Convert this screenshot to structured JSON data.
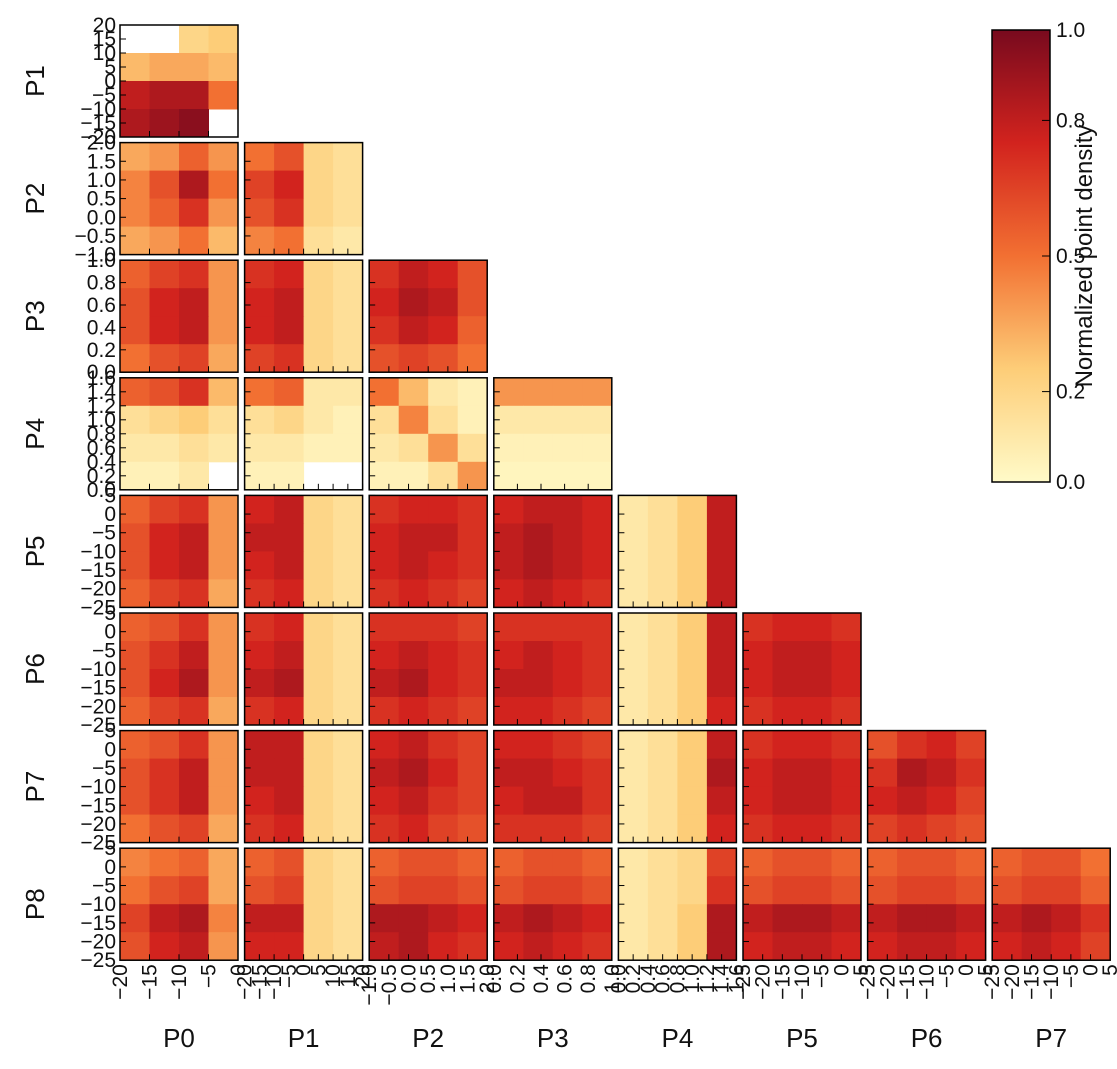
{
  "chart_data": {
    "type": "corner-heatmap",
    "colorbar": {
      "label": "Normalized point density",
      "lim": [
        0,
        1
      ],
      "ticks": [
        {
          "value": 0,
          "label": "0.0"
        },
        {
          "value": 0.2,
          "label": "0.2"
        },
        {
          "value": 0.5,
          "label": "0.5"
        },
        {
          "value": 0.8,
          "label": "0.8"
        },
        {
          "value": 1,
          "label": "1.0"
        }
      ]
    },
    "params": [
      {
        "name": "P0",
        "lim": [
          -20,
          0
        ],
        "ticks": [
          {
            "value": -20,
            "label": "−20"
          },
          {
            "value": -15,
            "label": "−15"
          },
          {
            "value": -10,
            "label": "−10"
          },
          {
            "value": -5,
            "label": "−5"
          },
          0
        ]
      },
      {
        "name": "P1",
        "lim": [
          -20,
          20
        ],
        "ticks": [
          {
            "value": -20,
            "label": "−20"
          },
          {
            "value": -15,
            "label": "−15"
          },
          {
            "value": -10,
            "label": "−10"
          },
          {
            "value": -5,
            "label": "−5"
          },
          0,
          5,
          10,
          15,
          20
        ]
      },
      {
        "name": "P2",
        "lim": [
          -1,
          2
        ],
        "ticks": [
          {
            "value": -1,
            "label": "−1.0"
          },
          {
            "value": -0.5,
            "label": "−0.5"
          },
          {
            "value": 0,
            "label": "0.0"
          },
          0.5,
          {
            "value": 1,
            "label": "1.0"
          },
          1.5,
          {
            "value": 2,
            "label": "2.0"
          }
        ]
      },
      {
        "name": "P3",
        "lim": [
          0,
          1
        ],
        "ticks": [
          {
            "value": 0,
            "label": "0.0"
          },
          0.2,
          0.4,
          0.6,
          0.8,
          {
            "value": 1,
            "label": "1.0"
          }
        ]
      },
      {
        "name": "P4",
        "lim": [
          0,
          1.6
        ],
        "ticks": [
          {
            "value": 0,
            "label": "0.0"
          },
          0.2,
          0.4,
          0.6,
          0.8,
          {
            "value": 1,
            "label": "1.0"
          },
          1.2,
          1.4,
          1.6
        ]
      },
      {
        "name": "P5",
        "lim": [
          -25,
          5
        ],
        "ticks": [
          {
            "value": -25,
            "label": "−25"
          },
          {
            "value": -20,
            "label": "−20"
          },
          {
            "value": -15,
            "label": "−15"
          },
          {
            "value": -10,
            "label": "−10"
          },
          {
            "value": -5,
            "label": "−5"
          },
          0,
          5
        ]
      },
      {
        "name": "P6",
        "lim": [
          -25,
          5
        ],
        "ticks": [
          {
            "value": -25,
            "label": "−25"
          },
          {
            "value": -20,
            "label": "−20"
          },
          {
            "value": -15,
            "label": "−15"
          },
          {
            "value": -10,
            "label": "−10"
          },
          {
            "value": -5,
            "label": "−5"
          },
          0,
          5
        ]
      },
      {
        "name": "P7",
        "lim": [
          -25,
          5
        ],
        "ticks": [
          {
            "value": -25,
            "label": "−25"
          },
          {
            "value": -20,
            "label": "−20"
          },
          {
            "value": -15,
            "label": "−15"
          },
          {
            "value": -10,
            "label": "−10"
          },
          {
            "value": -5,
            "label": "−5"
          },
          0,
          5
        ]
      },
      {
        "name": "P8",
        "lim": [
          -25,
          5
        ],
        "ticks": [
          {
            "value": -25,
            "label": "−25"
          },
          {
            "value": -20,
            "label": "−20"
          },
          {
            "value": -15,
            "label": "−15"
          },
          {
            "value": -10,
            "label": "−10"
          },
          {
            "value": -5,
            "label": "−5"
          },
          0,
          5
        ]
      }
    ],
    "rows": [
      [
        [
          [
            null,
            null,
            0.2,
            0.25
          ],
          [
            0.3,
            0.35,
            0.35,
            0.3
          ],
          [
            0.8,
            0.85,
            0.85,
            0.5
          ],
          [
            0.85,
            0.9,
            0.95,
            null
          ]
        ]
      ],
      [
        [
          [
            0.35,
            0.4,
            0.55,
            0.4
          ],
          [
            0.45,
            0.6,
            0.85,
            0.5
          ],
          [
            0.45,
            0.55,
            0.7,
            0.4
          ],
          [
            0.35,
            0.4,
            0.5,
            0.3
          ]
        ],
        [
          [
            0.5,
            0.6,
            0.2,
            0.15
          ],
          [
            0.65,
            0.75,
            0.2,
            0.15
          ],
          [
            0.6,
            0.7,
            0.2,
            0.15
          ],
          [
            0.45,
            0.5,
            0.15,
            0.1
          ]
        ]
      ],
      [
        [
          [
            0.55,
            0.65,
            0.7,
            0.4
          ],
          [
            0.6,
            0.75,
            0.8,
            0.4
          ],
          [
            0.6,
            0.75,
            0.8,
            0.4
          ],
          [
            0.5,
            0.6,
            0.65,
            0.35
          ]
        ],
        [
          [
            0.7,
            0.75,
            0.2,
            0.15
          ],
          [
            0.75,
            0.8,
            0.2,
            0.15
          ],
          [
            0.75,
            0.8,
            0.2,
            0.15
          ],
          [
            0.65,
            0.7,
            0.2,
            0.15
          ]
        ],
        [
          [
            0.7,
            0.8,
            0.75,
            0.6
          ],
          [
            0.75,
            0.85,
            0.8,
            0.6
          ],
          [
            0.7,
            0.8,
            0.75,
            0.55
          ],
          [
            0.6,
            0.65,
            0.6,
            0.5
          ]
        ]
      ],
      [
        [
          [
            0.55,
            0.6,
            0.7,
            0.3
          ],
          [
            0.15,
            0.2,
            0.25,
            0.15
          ],
          [
            0.1,
            0.1,
            0.15,
            0.1
          ],
          [
            0.05,
            0.05,
            0.1,
            null
          ]
        ],
        [
          [
            0.5,
            0.55,
            0.1,
            0.1
          ],
          [
            0.15,
            0.2,
            0.1,
            0.05
          ],
          [
            0.1,
            0.1,
            0.05,
            0.05
          ],
          [
            0.05,
            0.05,
            null,
            null
          ]
        ],
        [
          [
            0.5,
            0.3,
            0.1,
            0.05
          ],
          [
            0.15,
            0.45,
            0.15,
            0.05
          ],
          [
            0.1,
            0.15,
            0.4,
            0.15
          ],
          [
            0.05,
            0.05,
            0.15,
            0.4
          ]
        ],
        [
          [
            0.4,
            0.4,
            0.4,
            0.4
          ],
          [
            0.1,
            0.1,
            0.1,
            0.1
          ],
          [
            0.05,
            0.05,
            0.05,
            0.05
          ],
          [
            0.03,
            0.03,
            0.03,
            0.03
          ]
        ]
      ],
      [
        [
          [
            0.55,
            0.65,
            0.7,
            0.4
          ],
          [
            0.6,
            0.75,
            0.8,
            0.4
          ],
          [
            0.6,
            0.75,
            0.8,
            0.4
          ],
          [
            0.55,
            0.65,
            0.7,
            0.35
          ]
        ],
        [
          [
            0.75,
            0.8,
            0.2,
            0.15
          ],
          [
            0.8,
            0.8,
            0.2,
            0.15
          ],
          [
            0.75,
            0.8,
            0.2,
            0.15
          ],
          [
            0.7,
            0.75,
            0.2,
            0.15
          ]
        ],
        [
          [
            0.7,
            0.75,
            0.75,
            0.7
          ],
          [
            0.75,
            0.8,
            0.8,
            0.7
          ],
          [
            0.75,
            0.8,
            0.75,
            0.7
          ],
          [
            0.7,
            0.75,
            0.7,
            0.65
          ]
        ],
        [
          [
            0.75,
            0.8,
            0.8,
            0.75
          ],
          [
            0.8,
            0.85,
            0.8,
            0.75
          ],
          [
            0.8,
            0.85,
            0.8,
            0.75
          ],
          [
            0.75,
            0.8,
            0.75,
            0.7
          ]
        ],
        [
          [
            0.1,
            0.15,
            0.25,
            0.8
          ],
          [
            0.1,
            0.15,
            0.25,
            0.8
          ],
          [
            0.1,
            0.15,
            0.25,
            0.8
          ],
          [
            0.1,
            0.15,
            0.25,
            0.8
          ]
        ]
      ],
      [
        [
          [
            0.55,
            0.6,
            0.7,
            0.4
          ],
          [
            0.6,
            0.7,
            0.8,
            0.4
          ],
          [
            0.6,
            0.75,
            0.85,
            0.4
          ],
          [
            0.55,
            0.65,
            0.7,
            0.35
          ]
        ],
        [
          [
            0.7,
            0.75,
            0.2,
            0.15
          ],
          [
            0.75,
            0.8,
            0.2,
            0.15
          ],
          [
            0.8,
            0.85,
            0.2,
            0.15
          ],
          [
            0.7,
            0.75,
            0.2,
            0.15
          ]
        ],
        [
          [
            0.7,
            0.7,
            0.7,
            0.65
          ],
          [
            0.75,
            0.8,
            0.75,
            0.7
          ],
          [
            0.8,
            0.85,
            0.75,
            0.7
          ],
          [
            0.7,
            0.75,
            0.7,
            0.65
          ]
        ],
        [
          [
            0.7,
            0.7,
            0.7,
            0.7
          ],
          [
            0.75,
            0.8,
            0.75,
            0.7
          ],
          [
            0.8,
            0.8,
            0.75,
            0.7
          ],
          [
            0.75,
            0.75,
            0.7,
            0.65
          ]
        ],
        [
          [
            0.1,
            0.15,
            0.25,
            0.8
          ],
          [
            0.1,
            0.15,
            0.25,
            0.8
          ],
          [
            0.1,
            0.15,
            0.25,
            0.8
          ],
          [
            0.1,
            0.15,
            0.25,
            0.75
          ]
        ],
        [
          [
            0.7,
            0.75,
            0.75,
            0.7
          ],
          [
            0.75,
            0.8,
            0.8,
            0.75
          ],
          [
            0.75,
            0.8,
            0.8,
            0.75
          ],
          [
            0.7,
            0.75,
            0.75,
            0.7
          ]
        ]
      ],
      [
        [
          [
            0.55,
            0.6,
            0.7,
            0.4
          ],
          [
            0.6,
            0.7,
            0.8,
            0.4
          ],
          [
            0.6,
            0.7,
            0.8,
            0.4
          ],
          [
            0.5,
            0.6,
            0.65,
            0.35
          ]
        ],
        [
          [
            0.8,
            0.8,
            0.2,
            0.15
          ],
          [
            0.8,
            0.8,
            0.2,
            0.15
          ],
          [
            0.75,
            0.8,
            0.2,
            0.15
          ],
          [
            0.7,
            0.75,
            0.2,
            0.15
          ]
        ],
        [
          [
            0.75,
            0.8,
            0.7,
            0.65
          ],
          [
            0.8,
            0.85,
            0.75,
            0.65
          ],
          [
            0.75,
            0.8,
            0.7,
            0.65
          ],
          [
            0.7,
            0.75,
            0.65,
            0.6
          ]
        ],
        [
          [
            0.75,
            0.75,
            0.7,
            0.65
          ],
          [
            0.8,
            0.8,
            0.75,
            0.7
          ],
          [
            0.75,
            0.8,
            0.8,
            0.7
          ],
          [
            0.7,
            0.7,
            0.7,
            0.65
          ]
        ],
        [
          [
            0.1,
            0.15,
            0.25,
            0.8
          ],
          [
            0.1,
            0.15,
            0.25,
            0.85
          ],
          [
            0.1,
            0.15,
            0.25,
            0.8
          ],
          [
            0.1,
            0.15,
            0.25,
            0.75
          ]
        ],
        [
          [
            0.7,
            0.75,
            0.75,
            0.7
          ],
          [
            0.75,
            0.8,
            0.8,
            0.75
          ],
          [
            0.75,
            0.8,
            0.8,
            0.75
          ],
          [
            0.7,
            0.75,
            0.75,
            0.7
          ]
        ],
        [
          [
            0.6,
            0.7,
            0.75,
            0.65
          ],
          [
            0.7,
            0.85,
            0.8,
            0.7
          ],
          [
            0.75,
            0.8,
            0.75,
            0.65
          ],
          [
            0.65,
            0.7,
            0.65,
            0.6
          ]
        ]
      ],
      [
        [
          [
            0.45,
            0.5,
            0.55,
            0.35
          ],
          [
            0.5,
            0.6,
            0.65,
            0.35
          ],
          [
            0.65,
            0.8,
            0.85,
            0.45
          ],
          [
            0.6,
            0.75,
            0.8,
            0.4
          ]
        ],
        [
          [
            0.55,
            0.6,
            0.2,
            0.15
          ],
          [
            0.6,
            0.65,
            0.2,
            0.15
          ],
          [
            0.8,
            0.8,
            0.2,
            0.15
          ],
          [
            0.75,
            0.75,
            0.2,
            0.15
          ]
        ],
        [
          [
            0.55,
            0.6,
            0.6,
            0.55
          ],
          [
            0.6,
            0.65,
            0.65,
            0.6
          ],
          [
            0.85,
            0.85,
            0.8,
            0.75
          ],
          [
            0.8,
            0.85,
            0.75,
            0.7
          ]
        ],
        [
          [
            0.55,
            0.6,
            0.6,
            0.55
          ],
          [
            0.6,
            0.65,
            0.65,
            0.6
          ],
          [
            0.8,
            0.85,
            0.8,
            0.75
          ],
          [
            0.75,
            0.8,
            0.75,
            0.7
          ]
        ],
        [
          [
            0.1,
            0.15,
            0.2,
            0.65
          ],
          [
            0.1,
            0.15,
            0.2,
            0.7
          ],
          [
            0.1,
            0.15,
            0.25,
            0.85
          ],
          [
            0.1,
            0.15,
            0.25,
            0.85
          ]
        ],
        [
          [
            0.55,
            0.6,
            0.6,
            0.55
          ],
          [
            0.6,
            0.65,
            0.65,
            0.6
          ],
          [
            0.8,
            0.85,
            0.85,
            0.8
          ],
          [
            0.75,
            0.8,
            0.8,
            0.75
          ]
        ],
        [
          [
            0.55,
            0.6,
            0.6,
            0.55
          ],
          [
            0.6,
            0.65,
            0.65,
            0.6
          ],
          [
            0.8,
            0.85,
            0.85,
            0.8
          ],
          [
            0.75,
            0.8,
            0.8,
            0.75
          ]
        ],
        [
          [
            0.55,
            0.6,
            0.6,
            0.5
          ],
          [
            0.6,
            0.65,
            0.65,
            0.55
          ],
          [
            0.8,
            0.85,
            0.8,
            0.7
          ],
          [
            0.75,
            0.8,
            0.75,
            0.65
          ]
        ]
      ]
    ]
  }
}
